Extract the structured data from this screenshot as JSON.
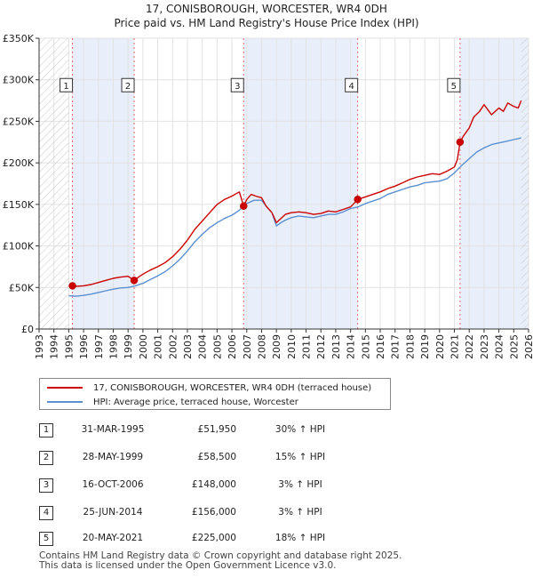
{
  "chart_data": {
    "type": "line",
    "title": "17, CONISBOROUGH, WORCESTER, WR4 0DH",
    "subtitle": "Price paid vs. HM Land Registry's House Price Index (HPI)",
    "xlim": [
      1993,
      2026
    ],
    "ylim": [
      0,
      350000
    ],
    "x_ticks": [
      1993,
      1994,
      1995,
      1996,
      1997,
      1998,
      1999,
      2000,
      2001,
      2002,
      2003,
      2004,
      2005,
      2006,
      2007,
      2008,
      2009,
      2010,
      2011,
      2012,
      2013,
      2014,
      2015,
      2016,
      2017,
      2018,
      2019,
      2020,
      2021,
      2022,
      2023,
      2024,
      2025,
      2026
    ],
    "y_ticks": [
      0,
      50000,
      100000,
      150000,
      200000,
      250000,
      300000,
      350000
    ],
    "y_tick_labels": [
      "£0",
      "£50K",
      "£100K",
      "£150K",
      "£200K",
      "£250K",
      "£300K",
      "£350K"
    ],
    "data_start_x": 1995.0,
    "data_end_x": 2025.5,
    "series": [
      {
        "name": "17, CONISBOROUGH, WORCESTER, WR4 0DH (terraced house)",
        "color": "#cc0000",
        "x": [
          1995.25,
          1995.5,
          1996,
          1996.5,
          1997,
          1997.5,
          1998,
          1998.5,
          1999,
          1999.41,
          1999.5,
          2000,
          2000.5,
          2001,
          2001.5,
          2002,
          2002.5,
          2003,
          2003.5,
          2004,
          2004.5,
          2005,
          2005.5,
          2006,
          2006.5,
          2006.79,
          2007,
          2007.3,
          2007.6,
          2008,
          2008.3,
          2008.7,
          2009,
          2009.3,
          2009.6,
          2010,
          2010.5,
          2011,
          2011.5,
          2012,
          2012.5,
          2013,
          2013.5,
          2014,
          2014.48,
          2015,
          2015.5,
          2016,
          2016.5,
          2017,
          2017.5,
          2018,
          2018.5,
          2019,
          2019.5,
          2020,
          2020.5,
          2021,
          2021.2,
          2021.38,
          2021.6,
          2022,
          2022.3,
          2022.7,
          2023,
          2023.5,
          2024,
          2024.3,
          2024.6,
          2025,
          2025.3,
          2025.5
        ],
        "values": [
          51950,
          51500,
          52000,
          53500,
          56000,
          58500,
          61000,
          62500,
          63500,
          58500,
          60000,
          66000,
          71000,
          75000,
          80000,
          87000,
          96000,
          107000,
          120000,
          130000,
          140000,
          150000,
          156000,
          160000,
          165000,
          148000,
          156000,
          162000,
          160000,
          158000,
          148000,
          140000,
          128000,
          133000,
          138000,
          140000,
          141000,
          140000,
          138000,
          139000,
          142000,
          141000,
          144000,
          147000,
          156000,
          159000,
          162000,
          165000,
          169000,
          172000,
          176000,
          180000,
          183000,
          185000,
          187000,
          186000,
          190000,
          195000,
          204000,
          225000,
          232000,
          242000,
          255000,
          262000,
          270000,
          258000,
          266000,
          262000,
          272000,
          268000,
          266000,
          275000
        ]
      },
      {
        "name": "HPI: Average price, terraced house, Worcester",
        "color": "#5b8fd0",
        "x": [
          1995.0,
          1995.5,
          1996,
          1996.5,
          1997,
          1997.5,
          1998,
          1998.5,
          1999,
          1999.5,
          2000,
          2000.5,
          2001,
          2001.5,
          2002,
          2002.5,
          2003,
          2003.5,
          2004,
          2004.5,
          2005,
          2005.5,
          2006,
          2006.5,
          2007,
          2007.5,
          2008,
          2008.3,
          2008.7,
          2009,
          2009.3,
          2009.6,
          2010,
          2010.5,
          2011,
          2011.5,
          2012,
          2012.5,
          2013,
          2013.5,
          2014,
          2014.5,
          2015,
          2015.5,
          2016,
          2016.5,
          2017,
          2017.5,
          2018,
          2018.5,
          2019,
          2019.5,
          2020,
          2020.5,
          2021,
          2021.5,
          2022,
          2022.5,
          2023,
          2023.5,
          2024,
          2024.5,
          2025,
          2025.5
        ],
        "values": [
          40000,
          39500,
          40500,
          42000,
          44000,
          46000,
          48000,
          49500,
          50000,
          52000,
          55000,
          59500,
          64000,
          69000,
          76000,
          84000,
          94000,
          105000,
          114000,
          122000,
          128000,
          133000,
          137000,
          143000,
          151000,
          155000,
          155000,
          148000,
          140000,
          124000,
          128000,
          131000,
          134000,
          136000,
          135000,
          134000,
          136000,
          138000,
          138000,
          141000,
          145000,
          147000,
          151000,
          154000,
          157000,
          162000,
          165000,
          168000,
          171000,
          173000,
          176000,
          177000,
          178000,
          181000,
          188000,
          197000,
          205000,
          213000,
          218000,
          222000,
          224000,
          226000,
          228000,
          230000
        ]
      }
    ],
    "sales": [
      {
        "label": "1",
        "x": 1995.25,
        "value": 51950
      },
      {
        "label": "2",
        "x": 1999.41,
        "value": 58500
      },
      {
        "label": "3",
        "x": 2006.79,
        "value": 148000
      },
      {
        "label": "4",
        "x": 2014.48,
        "value": 156000
      },
      {
        "label": "5",
        "x": 2021.38,
        "value": 225000
      }
    ],
    "shaded_periods": [
      [
        1995.25,
        1999.41
      ],
      [
        2006.79,
        2014.48
      ],
      [
        2021.38,
        2026
      ]
    ],
    "marker_box_value": 293000
  },
  "legend": {
    "line1": "17, CONISBOROUGH, WORCESTER, WR4 0DH (terraced house)",
    "line2": "HPI: Average price, terraced house, Worcester",
    "color1": "#cc0000",
    "color2": "#5b8fd0"
  },
  "table": [
    {
      "num": "1",
      "date": "31-MAR-1995",
      "price": "£51,950",
      "hpi": "30% ↑ HPI"
    },
    {
      "num": "2",
      "date": "28-MAY-1999",
      "price": "£58,500",
      "hpi": "15% ↑ HPI"
    },
    {
      "num": "3",
      "date": "16-OCT-2006",
      "price": "£148,000",
      "hpi": "3% ↑ HPI"
    },
    {
      "num": "4",
      "date": "25-JUN-2014",
      "price": "£156,000",
      "hpi": "3% ↑ HPI"
    },
    {
      "num": "5",
      "date": "20-MAY-2021",
      "price": "£225,000",
      "hpi": "18% ↑ HPI"
    }
  ],
  "footer": {
    "line1": "Contains HM Land Registry data © Crown copyright and database right 2025.",
    "line2": "This data is licensed under the Open Government Licence v3.0."
  }
}
